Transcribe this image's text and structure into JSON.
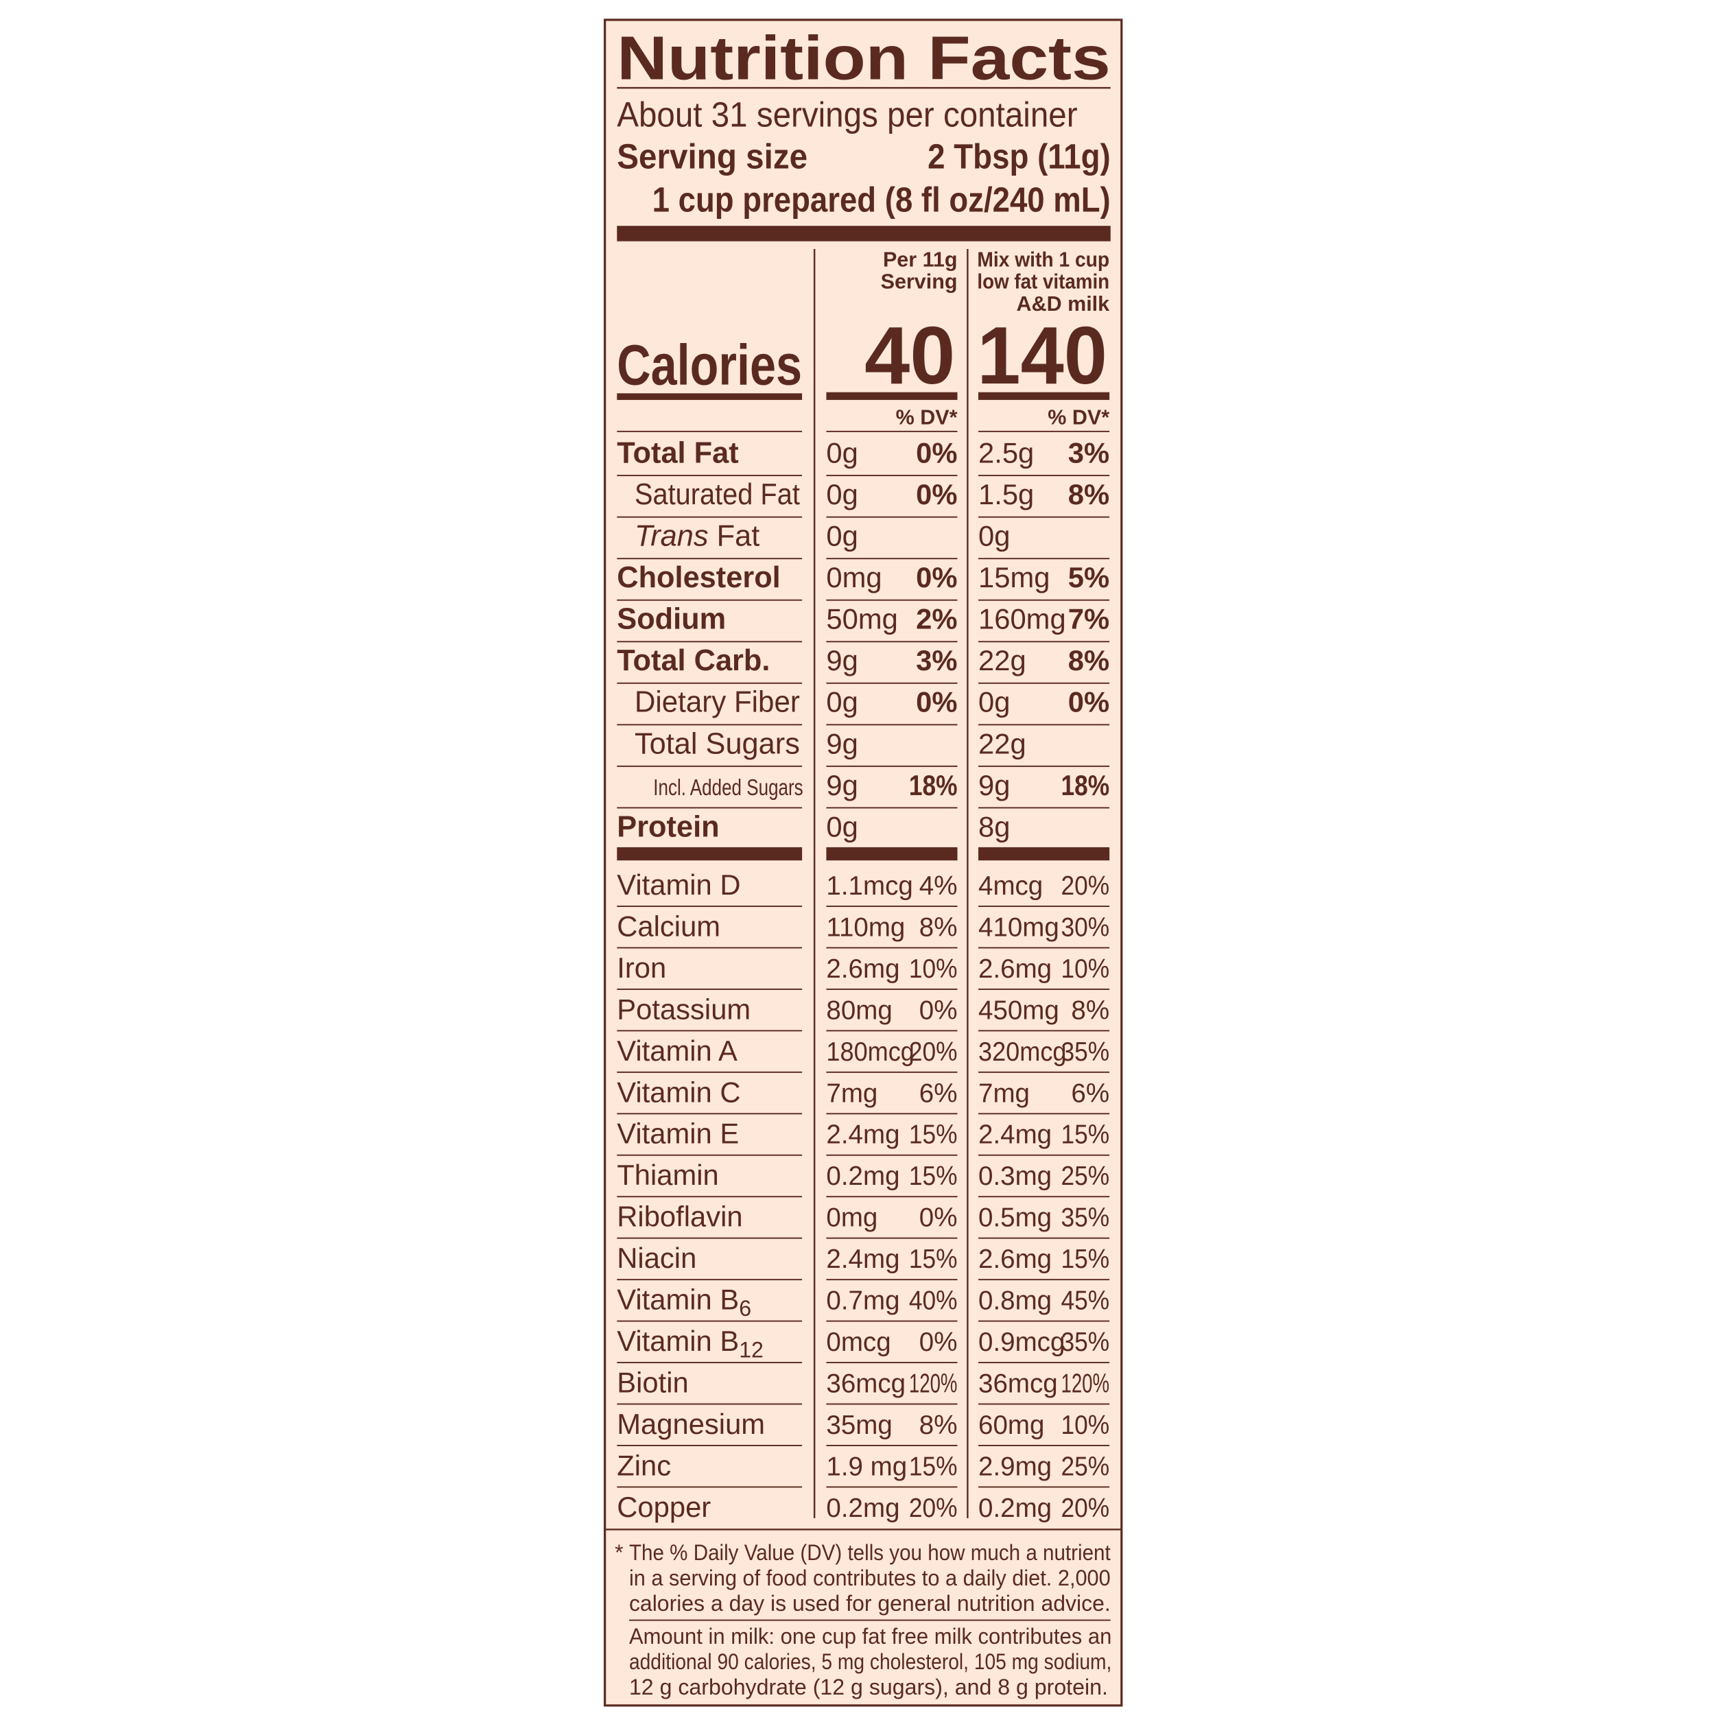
{
  "header": {
    "title": "Nutrition Facts",
    "servings": "About 31 servings per container",
    "serving_size_label": "Serving size",
    "serving_size": "2 Tbsp (11g)",
    "prepared": "1 cup prepared (8 fl oz/240 mL)"
  },
  "columns": {
    "per_serving": [
      "Per 11g",
      "Serving"
    ],
    "with_milk": [
      "Mix with 1 cup",
      "low fat vitamin",
      "A&D milk"
    ],
    "dv": "% DV*"
  },
  "calories": {
    "label": "Calories",
    "per_serving": 40,
    "with_milk": 140
  },
  "nutrients": [
    {
      "name": "Total Fat",
      "amount1": "0g",
      "dv1": "0%",
      "amount2": "2.5g",
      "dv2": "3%"
    },
    {
      "name": "Saturated Fat",
      "amount1": "0g",
      "dv1": "0%",
      "amount2": "1.5g",
      "dv2": "8%"
    },
    {
      "prefix": "Trans",
      "name": "Fat",
      "amount1": "0g",
      "amount2": "0g"
    },
    {
      "name": "Cholesterol",
      "amount1": "0mg",
      "dv1": "0%",
      "amount2": "15mg",
      "dv2": "5%"
    },
    {
      "name": "Sodium",
      "amount1": "50mg",
      "dv1": "2%",
      "amount2": "160mg",
      "dv2": "7%"
    },
    {
      "name": "Total Carb.",
      "amount1": "9g",
      "dv1": "3%",
      "amount2": "22g",
      "dv2": "8%"
    },
    {
      "name": "Dietary Fiber",
      "amount1": "0g",
      "dv1": "0%",
      "amount2": "0g",
      "dv2": "0%"
    },
    {
      "name": "Total Sugars",
      "amount1": "9g",
      "amount2": "22g"
    },
    {
      "name": "Incl. Added Sugars",
      "amount1": "9g",
      "dv1": "18%",
      "amount2": "9g",
      "dv2": "18%"
    },
    {
      "name": "Protein",
      "amount1": "0g",
      "amount2": "8g"
    }
  ],
  "vitamins": [
    {
      "name": "Vitamin D",
      "amount1": "1.1mcg",
      "dv1": "4%",
      "amount2": "4mcg",
      "dv2": "20%"
    },
    {
      "name": "Calcium",
      "amount1": "110mg",
      "dv1": "8%",
      "amount2": "410mg",
      "dv2": "30%"
    },
    {
      "name": "Iron",
      "amount1": "2.6mg",
      "dv1": "10%",
      "amount2": "2.6mg",
      "dv2": "10%"
    },
    {
      "name": "Potassium",
      "amount1": "80mg",
      "dv1": "0%",
      "amount2": "450mg",
      "dv2": "8%"
    },
    {
      "name": "Vitamin A",
      "amount1": "180mcg",
      "dv1": "20%",
      "amount2": "320mcg",
      "dv2": "35%"
    },
    {
      "name": "Vitamin C",
      "amount1": "7mg",
      "dv1": "6%",
      "amount2": "7mg",
      "dv2": "6%"
    },
    {
      "name": "Vitamin E",
      "amount1": "2.4mg",
      "dv1": "15%",
      "amount2": "2.4mg",
      "dv2": "15%"
    },
    {
      "name": "Thiamin",
      "amount1": "0.2mg",
      "dv1": "15%",
      "amount2": "0.3mg",
      "dv2": "25%"
    },
    {
      "name": "Riboflavin",
      "amount1": "0mg",
      "dv1": "0%",
      "amount2": "0.5mg",
      "dv2": "35%"
    },
    {
      "name": "Niacin",
      "amount1": "2.4mg",
      "dv1": "15%",
      "amount2": "2.6mg",
      "dv2": "15%"
    },
    {
      "name": "Vitamin B",
      "sub": "6",
      "amount1": "0.7mg",
      "dv1": "40%",
      "amount2": "0.8mg",
      "dv2": "45%"
    },
    {
      "name": "Vitamin B",
      "sub": "12",
      "amount1": "0mcg",
      "dv1": "0%",
      "amount2": "0.9mcg",
      "dv2": "35%"
    },
    {
      "name": "Biotin",
      "amount1": "36mcg",
      "dv1": "120%",
      "amount2": "36mcg",
      "dv2": "120%"
    },
    {
      "name": "Magnesium",
      "amount1": "35mg",
      "dv1": "8%",
      "amount2": "60mg",
      "dv2": "10%"
    },
    {
      "name": "Zinc",
      "amount1": "1.9 mg",
      "dv1": "15%",
      "amount2": "2.9mg",
      "dv2": "25%"
    },
    {
      "name": "Copper",
      "amount1": "0.2mg",
      "dv1": "20%",
      "amount2": "0.2mg",
      "dv2": "20%"
    }
  ],
  "footnote": {
    "mark": "*",
    "lines": [
      "The % Daily Value (DV) tells you how much a nutrient",
      "in a serving of food contributes to a daily diet. 2,000",
      "calories a day is used for general nutrition advice."
    ]
  },
  "milk_note": {
    "lines": [
      "Amount in milk: one cup fat free milk contributes an",
      "additional 90 calories, 5 mg cholesterol, 105 mg sodium,",
      "12 g carbohydrate (12 g sugars), and 8 g protein."
    ]
  }
}
